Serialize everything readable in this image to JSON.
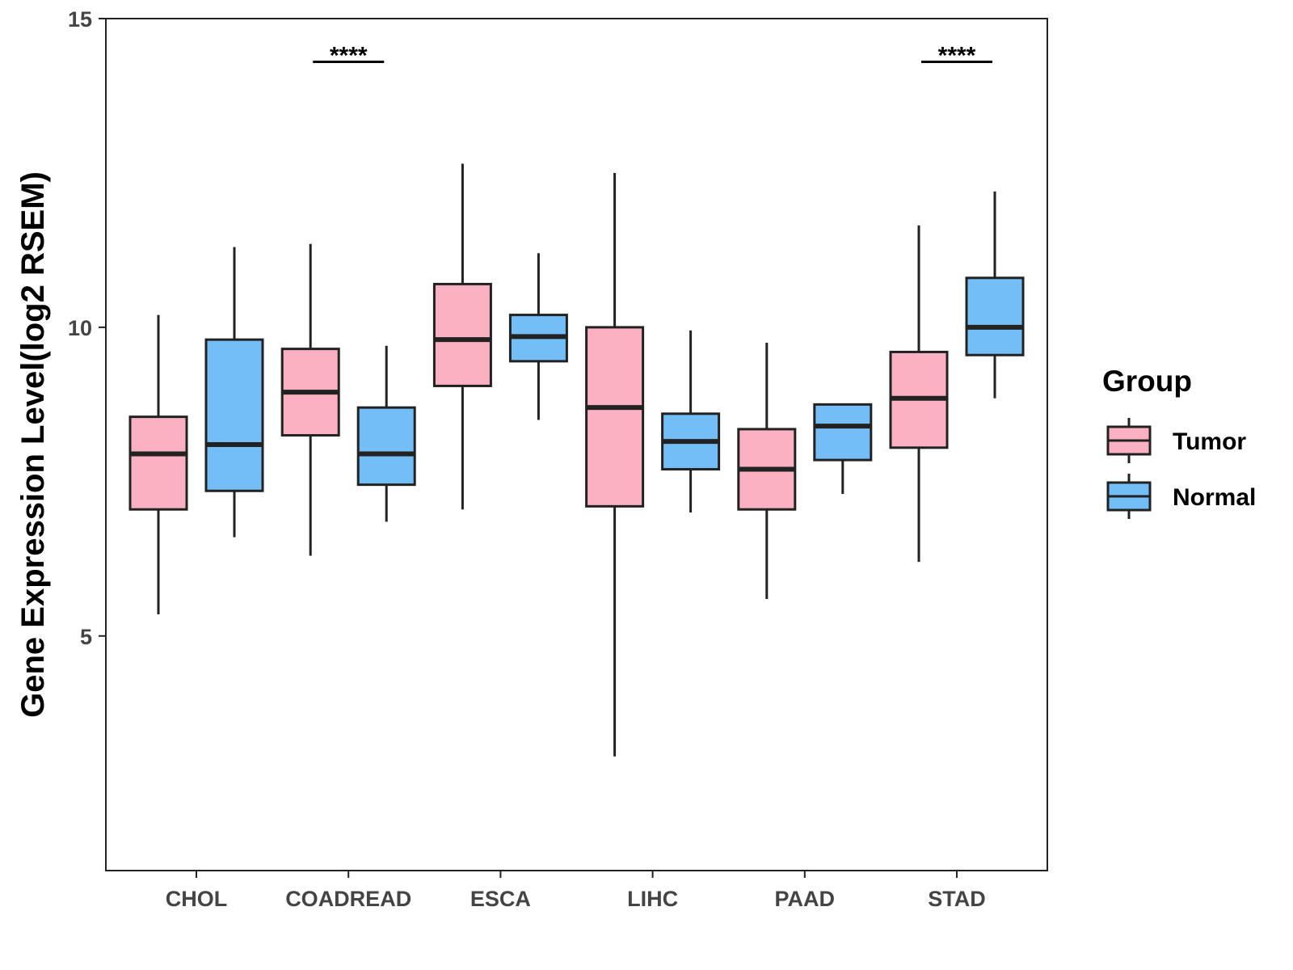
{
  "chart_data": {
    "type": "boxplot",
    "title": "",
    "xlabel": "",
    "ylabel": "Gene Expression Level(log2 RSEM)",
    "ylim": [
      1.2,
      15
    ],
    "yticks": [
      5,
      10,
      15
    ],
    "ytick_labels": [
      "5",
      "10",
      "15"
    ],
    "grid": false,
    "legend": {
      "title": "Group",
      "position": "right",
      "entries": [
        {
          "name": "Tumor",
          "color": "#FBB1C1"
        },
        {
          "name": "Normal",
          "color": "#74BEF8"
        }
      ]
    },
    "categories": [
      "CHOL",
      "COADREAD",
      "ESCA",
      "LIHC",
      "PAAD",
      "STAD"
    ],
    "series": [
      {
        "name": "Tumor",
        "color": "#FBB1C1",
        "boxes": [
          {
            "min": 5.35,
            "q1": 7.05,
            "median": 7.95,
            "q3": 8.55,
            "max": 10.2
          },
          {
            "min": 6.3,
            "q1": 8.25,
            "median": 8.95,
            "q3": 9.65,
            "max": 11.35
          },
          {
            "min": 7.05,
            "q1": 9.05,
            "median": 9.8,
            "q3": 10.7,
            "max": 12.65
          },
          {
            "min": 3.05,
            "q1": 7.1,
            "median": 8.7,
            "q3": 10.0,
            "max": 12.5
          },
          {
            "min": 5.6,
            "q1": 7.05,
            "median": 7.7,
            "q3": 8.35,
            "max": 9.75
          },
          {
            "min": 6.2,
            "q1": 8.05,
            "median": 8.85,
            "q3": 9.6,
            "max": 11.65
          }
        ]
      },
      {
        "name": "Normal",
        "color": "#74BEF8",
        "boxes": [
          {
            "min": 6.6,
            "q1": 7.35,
            "median": 8.1,
            "q3": 9.8,
            "max": 11.3
          },
          {
            "min": 6.85,
            "q1": 7.45,
            "median": 7.95,
            "q3": 8.7,
            "max": 9.7
          },
          {
            "min": 8.5,
            "q1": 9.45,
            "median": 9.85,
            "q3": 10.2,
            "max": 11.2
          },
          {
            "min": 7.0,
            "q1": 7.7,
            "median": 8.15,
            "q3": 8.6,
            "max": 9.95
          },
          {
            "min": 7.3,
            "q1": 7.85,
            "median": 8.4,
            "q3": 8.75,
            "max": 8.75
          },
          {
            "min": 8.85,
            "q1": 9.55,
            "median": 10.0,
            "q3": 10.8,
            "max": 12.2
          }
        ]
      }
    ],
    "annotations": [
      {
        "category": "COADREAD",
        "text": "****",
        "y": 14.3
      },
      {
        "category": "STAD",
        "text": "****",
        "y": 14.3
      }
    ]
  }
}
